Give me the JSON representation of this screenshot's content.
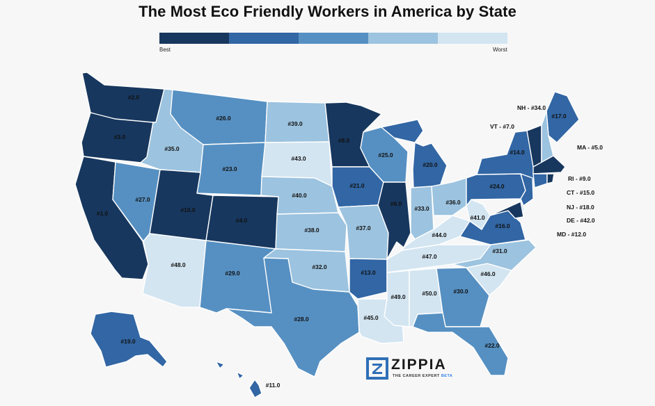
{
  "title": "The Most Eco Friendly Workers in America by State",
  "legend": {
    "low_label": "Best",
    "high_label": "Worst",
    "colors": [
      "#17375e",
      "#3266a4",
      "#5690c2",
      "#9cc3df",
      "#d3e5f1"
    ]
  },
  "brand": {
    "name": "ZIPPIA",
    "tagline": "THE CAREER EXPERT",
    "beta": "BETA",
    "icon": "zippia-logo-icon"
  },
  "states": {
    "WA": "#2.0",
    "OR": "#3.0",
    "CA": "#1.0",
    "NV": "#27.0",
    "ID": "#35.0",
    "MT": "#26.0",
    "WY": "#23.0",
    "UT": "#10.0",
    "AZ": "#48.0",
    "CO": "#4.0",
    "NM": "#29.0",
    "ND": "#39.0",
    "SD": "#43.0",
    "NE": "#40.0",
    "KS": "#38.0",
    "OK": "#32.0",
    "TX": "#28.0",
    "MN": "#8.0",
    "IA": "#21.0",
    "MO": "#37.0",
    "AR": "#13.0",
    "LA": "#45.0",
    "WI": "#25.0",
    "IL": "#6.0",
    "MI": "#20.0",
    "IN": "#33.0",
    "OH": "#36.0",
    "KY": "#44.0",
    "TN": "#47.0",
    "MS": "#49.0",
    "AL": "#50.0",
    "GA": "#30.0",
    "FL": "#22.0",
    "SC": "#46.0",
    "NC": "#31.0",
    "VA": "#16.0",
    "WV": "#41.0",
    "PA": "#24.0",
    "NY": "#14.0",
    "ME": "#17.0",
    "AK": "#19.0",
    "HI": "#11.0"
  },
  "callouts": {
    "NH": "NH - #34.0",
    "VT": "VT - #7.0",
    "MA": "MA - #5.0",
    "RI": "RI - #9.0",
    "CT": "CT - #15.0",
    "NJ": "NJ - #18.0",
    "DE": "DE - #42.0",
    "MD": "MD - #12.0"
  }
}
